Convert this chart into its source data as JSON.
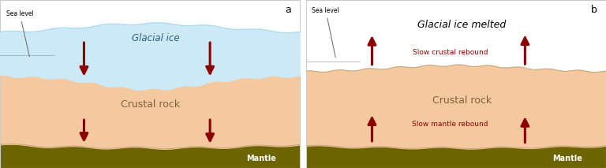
{
  "fig_width": 7.68,
  "fig_height": 2.13,
  "dpi": 100,
  "bg_color": "#ffffff",
  "panel_a_label": "a",
  "panel_b_label": "b",
  "crust_color": "#f5c9a0",
  "mantle_color": "#6b6400",
  "ice_color": "#cce9f5",
  "ice_top_color": "#a8d8ee",
  "sea_level_text": "Sea level",
  "crust_text": "Crustal rock",
  "mantle_text": "Mantle",
  "glacial_ice_text": "Glacial ice",
  "glacial_melted_text": "Glacial ice melted",
  "slow_crustal_text": "Slow crustal rebound",
  "slow_mantle_text": "Slow mantle rebound",
  "arrow_color": "#8b0000",
  "arrow_label_color": "#8b0000",
  "border_color": "#cccccc",
  "crust_outline_color": "#c8a878"
}
